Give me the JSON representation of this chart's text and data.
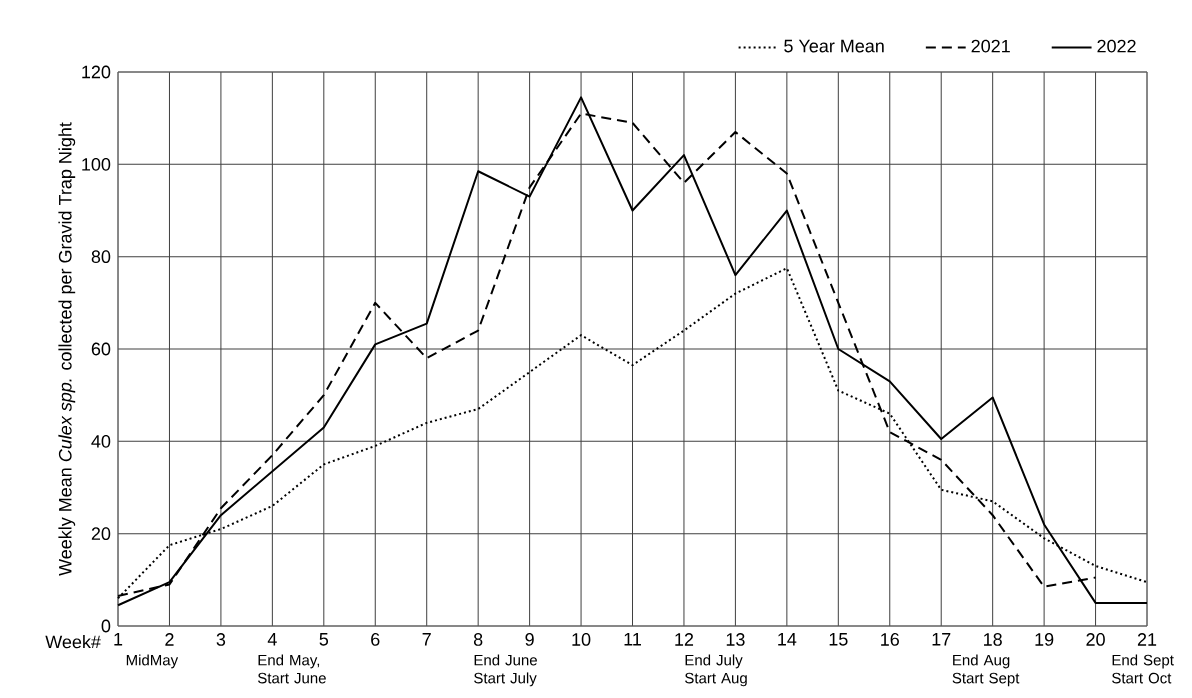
{
  "chart_data": {
    "type": "line",
    "ylabel": "Weekly Mean *Culex spp.* collected per Gravid Trap Night",
    "xlabel": "Week#",
    "x": [
      1,
      2,
      3,
      4,
      5,
      6,
      7,
      8,
      9,
      10,
      11,
      12,
      13,
      14,
      15,
      16,
      17,
      18,
      19,
      20,
      21
    ],
    "series": [
      {
        "name": "5 Year Mean",
        "color": "#000000",
        "line_style": "dotted",
        "values": [
          6,
          17.5,
          21,
          26,
          35,
          39,
          44,
          47,
          55,
          63,
          56.5,
          64,
          72,
          77.5,
          51,
          46,
          29.5,
          27,
          19,
          13,
          9.5
        ]
      },
      {
        "name": "2021",
        "color": "#000000",
        "line_style": "dashed",
        "values": [
          6.5,
          9,
          25.5,
          37,
          50,
          70,
          58,
          64,
          95,
          111,
          109,
          96,
          107,
          98,
          70,
          42,
          36,
          24,
          8.5,
          10.5,
          null
        ]
      },
      {
        "name": "2022",
        "color": "#000000",
        "line_style": "solid",
        "values": [
          4.5,
          9.5,
          24,
          33.5,
          43,
          61,
          65.5,
          98.5,
          93,
          114.5,
          90,
          102,
          76,
          90,
          60,
          53,
          40.5,
          49.5,
          22,
          5,
          5
        ]
      }
    ],
    "xlim": [
      1,
      21
    ],
    "xticks": [
      1,
      2,
      3,
      4,
      5,
      6,
      7,
      8,
      9,
      10,
      11,
      12,
      13,
      14,
      15,
      16,
      17,
      18,
      19,
      20,
      21
    ],
    "ylim": [
      0,
      120
    ],
    "yticks": [
      0,
      20,
      40,
      60,
      80,
      100,
      120
    ],
    "grid": true,
    "legend": "top right",
    "annotations": [
      "MidMay",
      "End May, Start June",
      "End June Start July",
      "End July Start Aug",
      "End Aug Start Sept",
      "End Sept Start Oct"
    ]
  }
}
